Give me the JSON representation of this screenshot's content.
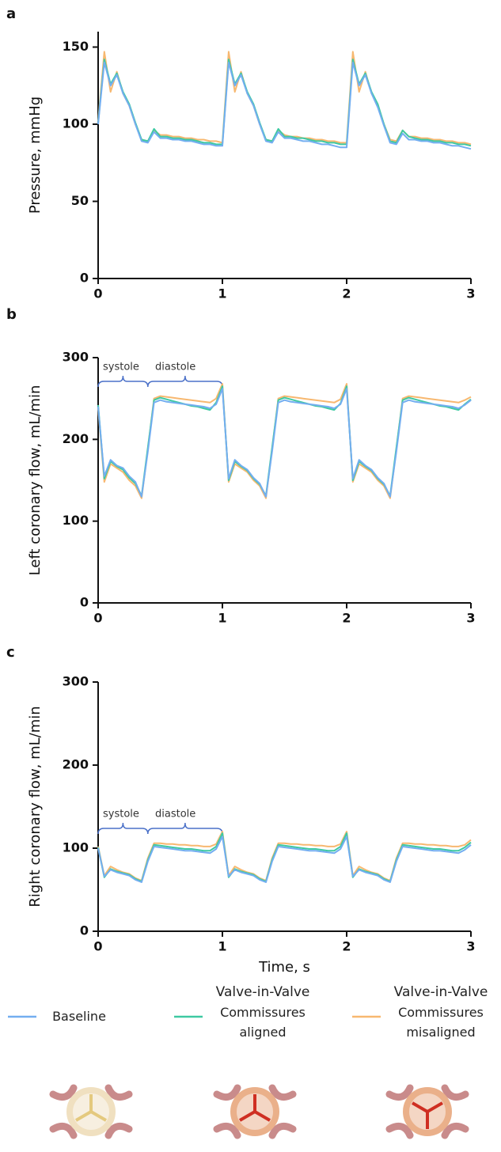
{
  "chart_data": [
    {
      "type": "line",
      "panel_label": "a",
      "y_label": "Pressure, mmHg",
      "x": [
        0,
        0.05,
        0.1,
        0.15,
        0.2,
        0.25,
        0.3,
        0.35,
        0.4,
        0.45,
        0.5,
        0.55,
        0.6,
        0.65,
        0.7,
        0.75,
        0.8,
        0.85,
        0.9,
        0.95,
        1,
        1.05,
        1.1,
        1.15,
        1.2,
        1.25,
        1.3,
        1.35,
        1.4,
        1.45,
        1.5,
        1.55,
        1.6,
        1.65,
        1.7,
        1.75,
        1.8,
        1.85,
        1.9,
        1.95,
        2,
        2.05,
        2.1,
        2.15,
        2.2,
        2.25,
        2.3,
        2.35,
        2.4,
        2.45,
        2.5,
        2.55,
        2.6,
        2.65,
        2.7,
        2.75,
        2.8,
        2.85,
        2.9,
        2.95,
        3
      ],
      "xlim": [
        0,
        3
      ],
      "xticks": [
        0,
        1,
        2,
        3
      ],
      "ylim": [
        0,
        160
      ],
      "yticks": [
        0,
        50,
        100,
        150
      ],
      "series": [
        {
          "name": "Baseline",
          "color": "#73aef0",
          "values": [
            100,
            140,
            125,
            132,
            120,
            112,
            100,
            89,
            88,
            95,
            91,
            91,
            90,
            90,
            89,
            89,
            88,
            87,
            87,
            86,
            86,
            140,
            125,
            132,
            120,
            112,
            100,
            89,
            88,
            95,
            91,
            91,
            90,
            89,
            89,
            88,
            87,
            87,
            86,
            85,
            85,
            140,
            125,
            132,
            120,
            111,
            99,
            88,
            87,
            94,
            90,
            90,
            89,
            89,
            88,
            88,
            87,
            86,
            86,
            85,
            84
          ]
        },
        {
          "name": "Commissures aligned",
          "group": "Valve-in-Valve",
          "color": "#3ec9a2",
          "values": [
            101,
            142,
            126,
            133,
            121,
            113,
            101,
            90,
            89,
            97,
            92,
            92,
            91,
            91,
            90,
            90,
            89,
            88,
            88,
            87,
            87,
            142,
            126,
            133,
            121,
            113,
            101,
            90,
            89,
            97,
            92,
            92,
            91,
            91,
            90,
            89,
            89,
            88,
            88,
            87,
            87,
            142,
            126,
            133,
            121,
            113,
            100,
            89,
            88,
            96,
            92,
            91,
            90,
            90,
            89,
            89,
            88,
            88,
            87,
            87,
            86
          ]
        },
        {
          "name": "Commissures misaligned",
          "group": "Valve-in-Valve",
          "color": "#f7b870",
          "values": [
            102,
            147,
            121,
            134,
            120,
            112,
            100,
            90,
            89,
            96,
            93,
            93,
            92,
            92,
            91,
            91,
            90,
            90,
            89,
            89,
            88,
            147,
            121,
            134,
            120,
            112,
            100,
            90,
            89,
            96,
            93,
            92,
            92,
            91,
            91,
            90,
            90,
            89,
            89,
            88,
            88,
            147,
            121,
            134,
            120,
            112,
            100,
            90,
            89,
            96,
            92,
            92,
            91,
            91,
            90,
            90,
            89,
            89,
            88,
            88,
            87
          ]
        }
      ]
    },
    {
      "type": "line",
      "panel_label": "b",
      "y_label": "Left coronary  flow, mL/min",
      "annotations": [
        "systole",
        "diastole"
      ],
      "x": [
        0,
        0.05,
        0.1,
        0.15,
        0.2,
        0.25,
        0.3,
        0.35,
        0.4,
        0.45,
        0.5,
        0.55,
        0.6,
        0.65,
        0.7,
        0.75,
        0.8,
        0.85,
        0.9,
        0.95,
        1,
        1.05,
        1.1,
        1.15,
        1.2,
        1.25,
        1.3,
        1.35,
        1.4,
        1.45,
        1.5,
        1.55,
        1.6,
        1.65,
        1.7,
        1.75,
        1.8,
        1.85,
        1.9,
        1.95,
        2,
        2.05,
        2.1,
        2.15,
        2.2,
        2.25,
        2.3,
        2.35,
        2.4,
        2.45,
        2.5,
        2.55,
        2.6,
        2.65,
        2.7,
        2.75,
        2.8,
        2.85,
        2.9,
        2.95,
        3
      ],
      "xlim": [
        0,
        3
      ],
      "xticks": [
        0,
        1,
        2,
        3
      ],
      "ylim": [
        0,
        300
      ],
      "yticks": [
        0,
        100,
        200,
        300
      ],
      "series": [
        {
          "name": "Baseline",
          "color": "#73aef0",
          "values": [
            240,
            155,
            175,
            168,
            165,
            155,
            148,
            130,
            185,
            245,
            248,
            246,
            245,
            244,
            243,
            242,
            241,
            240,
            238,
            243,
            262,
            152,
            175,
            168,
            163,
            153,
            146,
            130,
            185,
            245,
            248,
            246,
            245,
            244,
            243,
            242,
            241,
            240,
            238,
            243,
            262,
            152,
            175,
            168,
            163,
            153,
            146,
            130,
            185,
            245,
            248,
            246,
            245,
            244,
            243,
            242,
            241,
            240,
            238,
            242,
            248
          ]
        },
        {
          "name": "Commissures aligned",
          "group": "Valve-in-Valve",
          "color": "#3ec9a2",
          "values": [
            242,
            152,
            173,
            167,
            163,
            153,
            146,
            131,
            190,
            248,
            251,
            249,
            247,
            245,
            243,
            241,
            240,
            238,
            236,
            245,
            265,
            150,
            173,
            167,
            162,
            152,
            145,
            131,
            190,
            248,
            251,
            249,
            247,
            245,
            243,
            241,
            240,
            238,
            236,
            244,
            265,
            150,
            173,
            167,
            162,
            152,
            145,
            131,
            190,
            248,
            251,
            249,
            247,
            245,
            243,
            241,
            240,
            238,
            236,
            243,
            249
          ]
        },
        {
          "name": "Commissures misaligned",
          "group": "Valve-in-Valve",
          "color": "#f7b870",
          "values": [
            238,
            148,
            170,
            165,
            160,
            150,
            143,
            128,
            188,
            250,
            253,
            252,
            251,
            250,
            249,
            248,
            247,
            246,
            245,
            250,
            268,
            148,
            170,
            165,
            160,
            150,
            143,
            128,
            188,
            250,
            253,
            252,
            251,
            250,
            249,
            248,
            247,
            246,
            245,
            249,
            268,
            148,
            170,
            165,
            160,
            150,
            143,
            128,
            188,
            250,
            253,
            252,
            251,
            250,
            249,
            248,
            247,
            246,
            245,
            248,
            252
          ]
        }
      ]
    },
    {
      "type": "line",
      "panel_label": "c",
      "y_label": "Right coronary flow, mL/min",
      "x_label": "Time, s",
      "annotations": [
        "systole",
        "diastole"
      ],
      "x": [
        0,
        0.05,
        0.1,
        0.15,
        0.2,
        0.25,
        0.3,
        0.35,
        0.4,
        0.45,
        0.5,
        0.55,
        0.6,
        0.65,
        0.7,
        0.75,
        0.8,
        0.85,
        0.9,
        0.95,
        1,
        1.05,
        1.1,
        1.15,
        1.2,
        1.25,
        1.3,
        1.35,
        1.4,
        1.45,
        1.5,
        1.55,
        1.6,
        1.65,
        1.7,
        1.75,
        1.8,
        1.85,
        1.9,
        1.95,
        2,
        2.05,
        2.1,
        2.15,
        2.2,
        2.25,
        2.3,
        2.35,
        2.4,
        2.45,
        2.5,
        2.55,
        2.6,
        2.65,
        2.7,
        2.75,
        2.8,
        2.85,
        2.9,
        2.95,
        3
      ],
      "xlim": [
        0,
        3
      ],
      "xticks": [
        0,
        1,
        2,
        3
      ],
      "ylim": [
        0,
        300
      ],
      "yticks": [
        0,
        100,
        200,
        300
      ],
      "series": [
        {
          "name": "Baseline",
          "color": "#73aef0",
          "values": [
            100,
            66,
            74,
            71,
            69,
            67,
            62,
            59,
            84,
            102,
            101,
            100,
            99,
            98,
            97,
            97,
            96,
            95,
            94,
            99,
            114,
            66,
            74,
            71,
            69,
            67,
            62,
            59,
            84,
            102,
            101,
            100,
            99,
            98,
            97,
            97,
            96,
            95,
            94,
            99,
            114,
            66,
            74,
            71,
            69,
            67,
            62,
            59,
            84,
            102,
            101,
            100,
            99,
            98,
            97,
            97,
            96,
            95,
            94,
            98,
            104
          ]
        },
        {
          "name": "Commissures aligned",
          "group": "Valve-in-Valve",
          "color": "#3ec9a2",
          "values": [
            101,
            65,
            75,
            72,
            70,
            68,
            63,
            60,
            86,
            104,
            103,
            102,
            101,
            100,
            99,
            99,
            98,
            97,
            97,
            102,
            118,
            65,
            75,
            72,
            70,
            68,
            63,
            60,
            86,
            104,
            103,
            102,
            101,
            100,
            99,
            99,
            98,
            97,
            97,
            102,
            118,
            65,
            75,
            72,
            70,
            68,
            63,
            60,
            86,
            104,
            103,
            102,
            101,
            100,
            99,
            99,
            98,
            97,
            97,
            101,
            107
          ]
        },
        {
          "name": "Commissures misaligned",
          "group": "Valve-in-Valve",
          "color": "#f7b870",
          "values": [
            102,
            67,
            78,
            74,
            71,
            69,
            64,
            61,
            88,
            106,
            106,
            105,
            105,
            104,
            104,
            103,
            103,
            102,
            102,
            105,
            120,
            67,
            78,
            74,
            71,
            69,
            64,
            61,
            88,
            106,
            106,
            105,
            105,
            104,
            104,
            103,
            103,
            102,
            102,
            105,
            120,
            67,
            78,
            74,
            71,
            69,
            64,
            61,
            88,
            106,
            106,
            105,
            105,
            104,
            104,
            103,
            103,
            102,
            102,
            104,
            110
          ]
        }
      ]
    }
  ]
}
